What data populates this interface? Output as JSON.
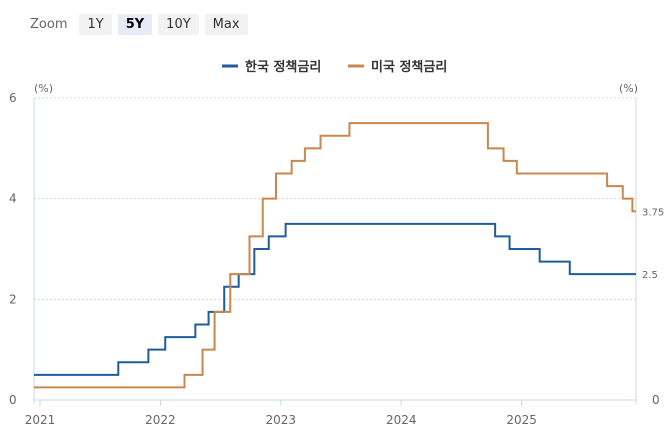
{
  "zoom": {
    "label": "Zoom",
    "buttons": [
      "1Y",
      "5Y",
      "10Y",
      "Max"
    ],
    "active": "5Y"
  },
  "colors": {
    "korea": "#1f5c99",
    "usa": "#c8874e",
    "grid": "#d8d8d8",
    "axis": "#c8d8ec"
  },
  "chart_data": {
    "type": "line",
    "step": true,
    "grid": true,
    "legend_position": "top-center",
    "title": "",
    "xlabel": "",
    "left_axis": {
      "unit": "(%)",
      "ticks": [
        "0",
        "2",
        "4",
        "6"
      ],
      "range": [
        0,
        6
      ]
    },
    "right_axis": {
      "unit": "(%)",
      "ticks": [
        "0",
        "2.5",
        "3.75"
      ],
      "range": [
        0,
        6
      ]
    },
    "x_ticks": [
      "2021",
      "2022",
      "2023",
      "2024",
      "2025"
    ],
    "x_range": [
      2020.95,
      2025.95
    ],
    "series": [
      {
        "name": "한국 정책금리",
        "color": "#1f5c99",
        "last_value_label": "2.5",
        "points": [
          [
            2020.95,
            0.5
          ],
          [
            2021.65,
            0.75
          ],
          [
            2021.9,
            1.0
          ],
          [
            2022.04,
            1.25
          ],
          [
            2022.29,
            1.5
          ],
          [
            2022.4,
            1.75
          ],
          [
            2022.53,
            2.25
          ],
          [
            2022.65,
            2.5
          ],
          [
            2022.78,
            3.0
          ],
          [
            2022.9,
            3.25
          ],
          [
            2023.04,
            3.5
          ],
          [
            2024.78,
            3.25
          ],
          [
            2024.9,
            3.0
          ],
          [
            2025.15,
            2.75
          ],
          [
            2025.4,
            2.5
          ],
          [
            2025.95,
            2.5
          ]
        ]
      },
      {
        "name": "미국 정책금리",
        "color": "#c8874e",
        "last_value_label": "3.75",
        "points": [
          [
            2020.95,
            0.25
          ],
          [
            2022.2,
            0.5
          ],
          [
            2022.35,
            1.0
          ],
          [
            2022.45,
            1.75
          ],
          [
            2022.58,
            2.5
          ],
          [
            2022.74,
            3.25
          ],
          [
            2022.85,
            4.0
          ],
          [
            2022.96,
            4.5
          ],
          [
            2023.09,
            4.75
          ],
          [
            2023.2,
            5.0
          ],
          [
            2023.33,
            5.25
          ],
          [
            2023.57,
            5.5
          ],
          [
            2024.72,
            5.0
          ],
          [
            2024.85,
            4.75
          ],
          [
            2024.96,
            4.5
          ],
          [
            2025.71,
            4.25
          ],
          [
            2025.84,
            4.0
          ],
          [
            2025.92,
            3.75
          ],
          [
            2025.95,
            3.75
          ]
        ]
      }
    ]
  }
}
